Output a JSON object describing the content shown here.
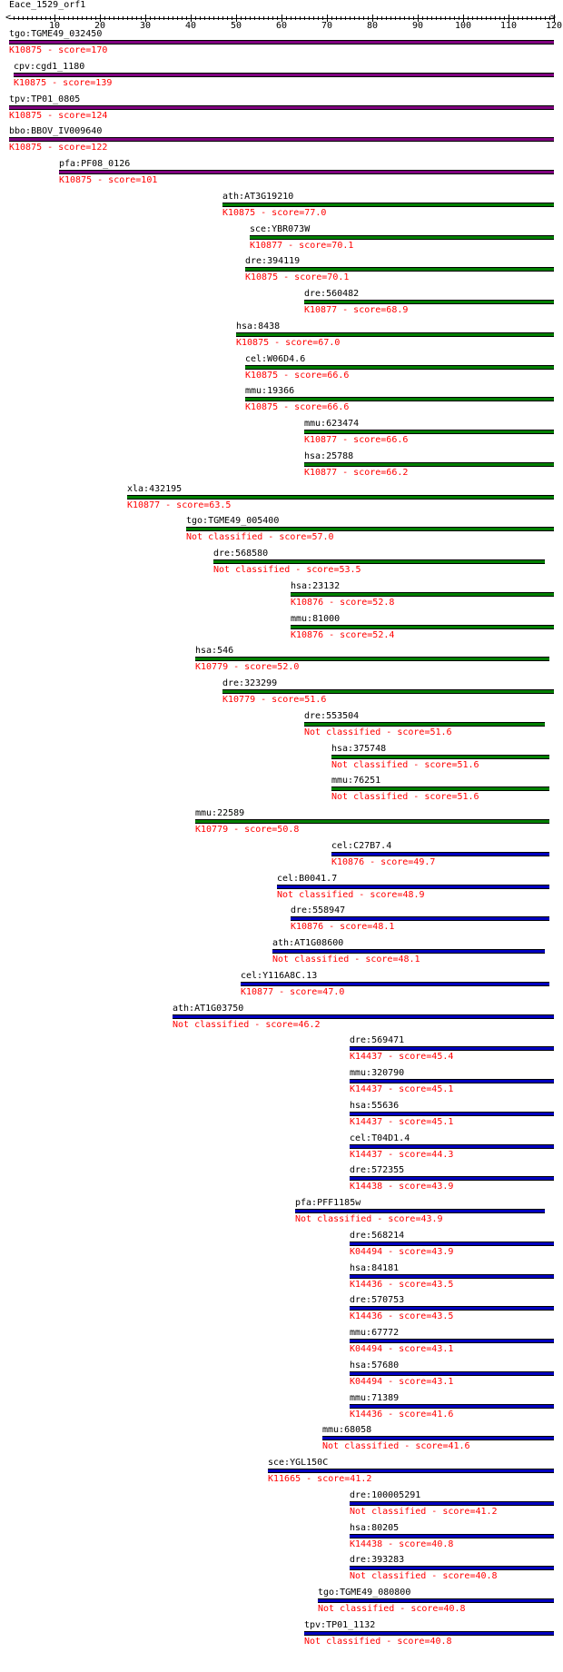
{
  "query": {
    "name": "Eace_1529_orf1",
    "length": 120
  },
  "ruler": {
    "max": 120,
    "ticks": [
      "10",
      "20",
      "30",
      "40",
      "50",
      "60",
      "70",
      "80",
      "90",
      "100",
      "110",
      "120"
    ]
  },
  "colors": {
    "purple": "#800080",
    "green": "#008000",
    "blue": "#0000c0",
    "label": "#ff0000"
  },
  "hits": [
    {
      "name": "tgo:TGME49_032450",
      "label": "K10875 - score=170",
      "start": 1,
      "end": 120,
      "color": "purple"
    },
    {
      "name": "cpv:cgd1_1180",
      "label": "K10875 - score=139",
      "start": 2,
      "end": 120,
      "color": "purple"
    },
    {
      "name": "tpv:TP01_0805",
      "label": "K10875 - score=124",
      "start": 1,
      "end": 120,
      "color": "purple"
    },
    {
      "name": "bbo:BBOV_IV009640",
      "label": "K10875 - score=122",
      "start": 1,
      "end": 120,
      "color": "purple"
    },
    {
      "name": "pfa:PF08_0126",
      "label": "K10875 - score=101",
      "start": 12,
      "end": 120,
      "color": "purple"
    },
    {
      "name": "ath:AT3G19210",
      "label": "K10875 - score=77.0",
      "start": 48,
      "end": 120,
      "color": "green"
    },
    {
      "name": "sce:YBR073W",
      "label": "K10877 - score=70.1",
      "start": 54,
      "end": 120,
      "color": "green"
    },
    {
      "name": "dre:394119",
      "label": "K10875 - score=70.1",
      "start": 53,
      "end": 120,
      "color": "green"
    },
    {
      "name": "dre:560482",
      "label": "K10877 - score=68.9",
      "start": 66,
      "end": 120,
      "color": "green"
    },
    {
      "name": "hsa:8438",
      "label": "K10875 - score=67.0",
      "start": 51,
      "end": 120,
      "color": "green"
    },
    {
      "name": "cel:W06D4.6",
      "label": "K10875 - score=66.6",
      "start": 53,
      "end": 120,
      "color": "green"
    },
    {
      "name": "mmu:19366",
      "label": "K10875 - score=66.6",
      "start": 53,
      "end": 120,
      "color": "green"
    },
    {
      "name": "mmu:623474",
      "label": "K10877 - score=66.6",
      "start": 66,
      "end": 120,
      "color": "green"
    },
    {
      "name": "hsa:25788",
      "label": "K10877 - score=66.2",
      "start": 66,
      "end": 120,
      "color": "green"
    },
    {
      "name": "xla:432195",
      "label": "K10877 - score=63.5",
      "start": 27,
      "end": 120,
      "color": "green"
    },
    {
      "name": "tgo:TGME49_005400",
      "label": "Not classified - score=57.0",
      "start": 40,
      "end": 120,
      "color": "green"
    },
    {
      "name": "dre:568580",
      "label": "Not classified - score=53.5",
      "start": 46,
      "end": 118,
      "color": "green"
    },
    {
      "name": "hsa:23132",
      "label": "K10876 - score=52.8",
      "start": 63,
      "end": 120,
      "color": "green"
    },
    {
      "name": "mmu:81000",
      "label": "K10876 - score=52.4",
      "start": 63,
      "end": 120,
      "color": "green"
    },
    {
      "name": "hsa:546",
      "label": "K10779 - score=52.0",
      "start": 42,
      "end": 119,
      "color": "green"
    },
    {
      "name": "dre:323299",
      "label": "K10779 - score=51.6",
      "start": 48,
      "end": 120,
      "color": "green"
    },
    {
      "name": "dre:553504",
      "label": "Not classified - score=51.6",
      "start": 66,
      "end": 118,
      "color": "green"
    },
    {
      "name": "hsa:375748",
      "label": "Not classified - score=51.6",
      "start": 72,
      "end": 119,
      "color": "green"
    },
    {
      "name": "mmu:76251",
      "label": "Not classified - score=51.6",
      "start": 72,
      "end": 119,
      "color": "green"
    },
    {
      "name": "mmu:22589",
      "label": "K10779 - score=50.8",
      "start": 42,
      "end": 119,
      "color": "green"
    },
    {
      "name": "cel:C27B7.4",
      "label": "K10876 - score=49.7",
      "start": 72,
      "end": 119,
      "color": "blue"
    },
    {
      "name": "cel:B0041.7",
      "label": "Not classified - score=48.9",
      "start": 60,
      "end": 119,
      "color": "blue"
    },
    {
      "name": "dre:558947",
      "label": "K10876 - score=48.1",
      "start": 63,
      "end": 119,
      "color": "blue"
    },
    {
      "name": "ath:AT1G08600",
      "label": "Not classified - score=48.1",
      "start": 59,
      "end": 118,
      "color": "blue"
    },
    {
      "name": "cel:Y116A8C.13",
      "label": "K10877 - score=47.0",
      "start": 52,
      "end": 119,
      "color": "blue"
    },
    {
      "name": "ath:AT1G03750",
      "label": "Not classified - score=46.2",
      "start": 37,
      "end": 120,
      "color": "blue"
    },
    {
      "name": "dre:569471",
      "label": "K14437 - score=45.4",
      "start": 76,
      "end": 120,
      "color": "blue"
    },
    {
      "name": "mmu:320790",
      "label": "K14437 - score=45.1",
      "start": 76,
      "end": 120,
      "color": "blue"
    },
    {
      "name": "hsa:55636",
      "label": "K14437 - score=45.1",
      "start": 76,
      "end": 120,
      "color": "blue"
    },
    {
      "name": "cel:T04D1.4",
      "label": "K14437 - score=44.3",
      "start": 76,
      "end": 120,
      "color": "blue"
    },
    {
      "name": "dre:572355",
      "label": "K14438 - score=43.9",
      "start": 76,
      "end": 120,
      "color": "blue"
    },
    {
      "name": "pfa:PFF1185w",
      "label": "Not classified - score=43.9",
      "start": 64,
      "end": 118,
      "color": "blue"
    },
    {
      "name": "dre:568214",
      "label": "K04494 - score=43.9",
      "start": 76,
      "end": 120,
      "color": "blue"
    },
    {
      "name": "hsa:84181",
      "label": "K14436 - score=43.5",
      "start": 76,
      "end": 120,
      "color": "blue"
    },
    {
      "name": "dre:570753",
      "label": "K14436 - score=43.5",
      "start": 76,
      "end": 120,
      "color": "blue"
    },
    {
      "name": "mmu:67772",
      "label": "K04494 - score=43.1",
      "start": 76,
      "end": 120,
      "color": "blue"
    },
    {
      "name": "hsa:57680",
      "label": "K04494 - score=43.1",
      "start": 76,
      "end": 120,
      "color": "blue"
    },
    {
      "name": "mmu:71389",
      "label": "K14436 - score=41.6",
      "start": 76,
      "end": 120,
      "color": "blue"
    },
    {
      "name": "mmu:68058",
      "label": "Not classified - score=41.6",
      "start": 70,
      "end": 120,
      "color": "blue"
    },
    {
      "name": "sce:YGL150C",
      "label": "K11665 - score=41.2",
      "start": 58,
      "end": 120,
      "color": "blue"
    },
    {
      "name": "dre:100005291",
      "label": "Not classified - score=41.2",
      "start": 76,
      "end": 120,
      "color": "blue"
    },
    {
      "name": "hsa:80205",
      "label": "K14438 - score=40.8",
      "start": 76,
      "end": 120,
      "color": "blue"
    },
    {
      "name": "dre:393283",
      "label": "Not classified - score=40.8",
      "start": 76,
      "end": 120,
      "color": "blue"
    },
    {
      "name": "tgo:TGME49_080800",
      "label": "Not classified - score=40.8",
      "start": 69,
      "end": 120,
      "color": "blue"
    },
    {
      "name": "tpv:TP01_1132",
      "label": "Not classified - score=40.8",
      "start": 66,
      "end": 120,
      "color": "blue"
    }
  ]
}
